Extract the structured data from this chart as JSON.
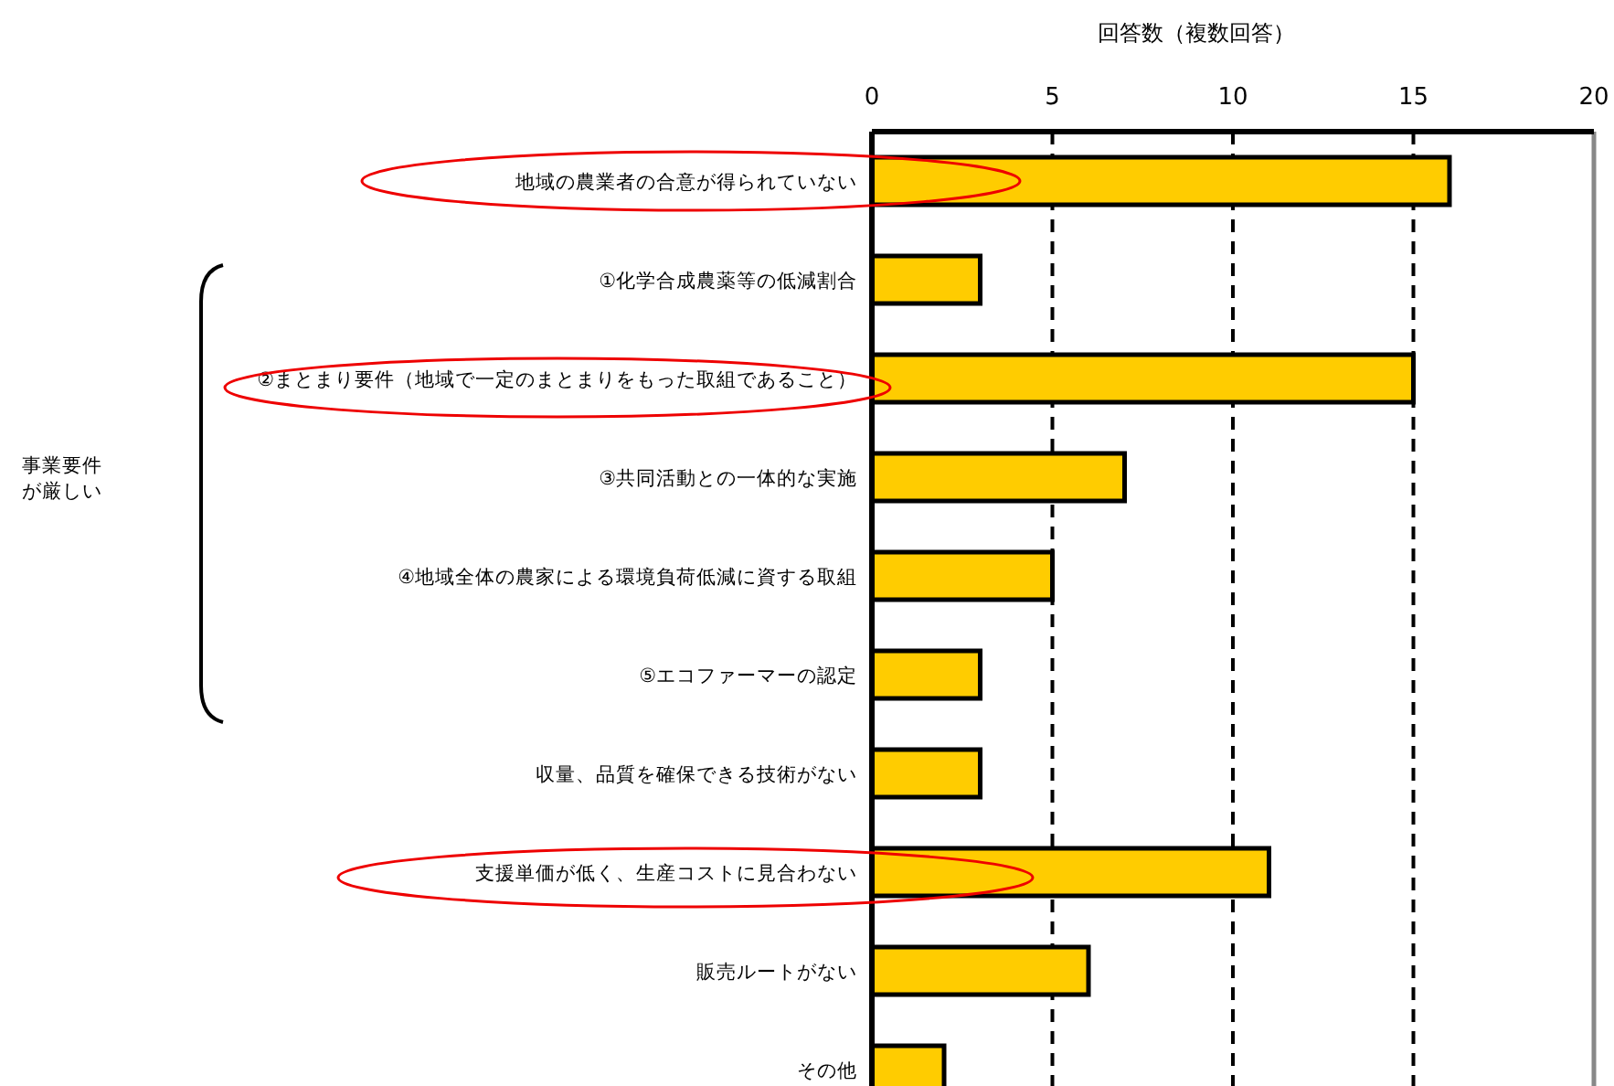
{
  "chart_data": {
    "type": "bar",
    "orientation": "horizontal",
    "xlabel": "回答数（複数回答）",
    "categories": [
      "地域の農業者の合意が得られていない",
      "①化学合成農薬等の低減割合",
      "②まとまり要件（地域で一定のまとまりをもった取組であること）",
      "③共同活動との一体的な実施",
      "④地域全体の農家による環境負荷低減に資する取組",
      "⑤エコファーマーの認定",
      "収量、品質を確保できる技術がない",
      "支援単価が低く、生産コストに見合わない",
      "販売ルートがない",
      "その他"
    ],
    "values": [
      16,
      3,
      15,
      7,
      5,
      3,
      3,
      11,
      6,
      2
    ],
    "color": "#ffcc00",
    "xlim": [
      0,
      20
    ],
    "xticks": [
      0,
      5,
      10,
      15,
      20
    ],
    "grid": "x",
    "annotations": [
      "事業要件が厳しい"
    ]
  }
}
